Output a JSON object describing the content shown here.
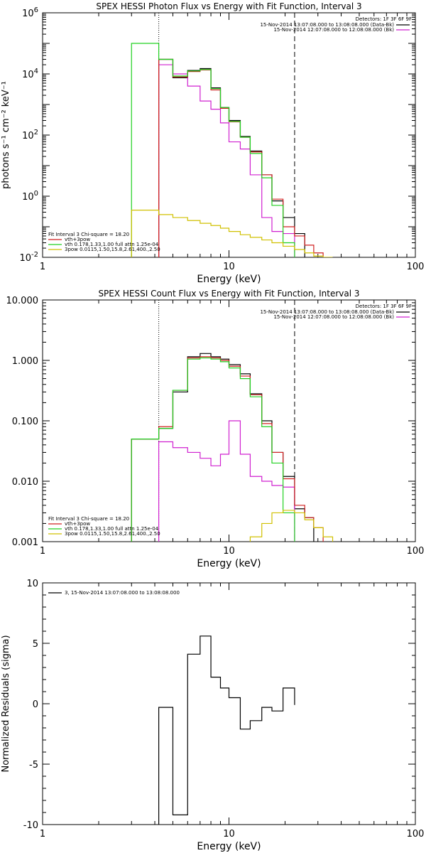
{
  "chart_data": [
    {
      "type": "line",
      "title": "SPEX HESSI Photon Flux vs Energy with Fit Function, Interval 3",
      "xlabel": "Energy (keV)",
      "ylabel": "photons s⁻¹ cm⁻² keV⁻¹",
      "xscale": "log",
      "yscale": "log",
      "xlim": [
        1,
        100
      ],
      "ylim": [
        0.01,
        1000000
      ],
      "x_ticks": [
        {
          "v": 1,
          "label": "1"
        },
        {
          "v": 10,
          "label": "10"
        },
        {
          "v": 100,
          "label": "100"
        }
      ],
      "y_ticks": [
        {
          "v": 0.01,
          "base": "10",
          "exp": "-2"
        },
        {
          "v": 1,
          "base": "10",
          "exp": "0"
        },
        {
          "v": 100,
          "base": "10",
          "exp": "2"
        },
        {
          "v": 10000,
          "base": "10",
          "exp": "4"
        },
        {
          "v": 1000000,
          "base": "10",
          "exp": "6"
        }
      ],
      "legend_right": {
        "title": "Detectors: 1F 3F 6F 9F",
        "entries": [
          {
            "text": "15-Nov-2014 13:07:08.000 to 13:08:08.000 (Data-Bk)",
            "color": "#000000"
          },
          {
            "text": "15-Nov-2014 12:07:08.000 to 12:08:08.000 (Bk)",
            "color": "#d020d0"
          }
        ]
      },
      "legend_left": {
        "title": "Fit Interval 3   Chi-square = 18.20",
        "entries": [
          {
            "text": "vth+3pow",
            "color": "#d02020"
          },
          {
            "text": "vth 0.178,1.33,1.00  full attn 1.25e-04",
            "color": "#20d020"
          },
          {
            "text": "3pow 0.0115,1.50,15.8,2.61,400.,2.50",
            "color": "#d0c000"
          }
        ]
      },
      "vlines": [
        {
          "x": 4.2,
          "style": "dotted"
        },
        {
          "x": 22.5,
          "style": "dashed"
        }
      ],
      "series": [
        {
          "key": "data",
          "color": "#000000",
          "edges": [
            4.2,
            5.0,
            6.0,
            7.0,
            8.0,
            9.0,
            10.0,
            11.5,
            13.0,
            15.0,
            17.0,
            19.5,
            22.5,
            25.5
          ],
          "values": [
            30000,
            7500,
            13000,
            15000,
            3500,
            800,
            300,
            90,
            30,
            5,
            0.7,
            0.2,
            0.06
          ]
        },
        {
          "key": "bk",
          "color": "#d020d0",
          "edges": [
            4.2,
            5.0,
            6.0,
            7.0,
            8.0,
            9.0,
            10.0,
            11.5,
            13.0,
            15.0,
            17.0,
            19.5,
            22.5
          ],
          "values": [
            20000,
            10000,
            4000,
            1300,
            700,
            250,
            60,
            35,
            5,
            0.2,
            0.07,
            0.06
          ]
        },
        {
          "key": "total",
          "color": "#d02020",
          "edges": [
            4.2,
            5.0,
            6.0,
            7.0,
            8.0,
            9.0,
            10.0,
            11.5,
            13.0,
            15.0,
            17.0,
            19.5,
            22.5,
            25.5,
            28.5,
            32.0
          ],
          "values": [
            30000,
            8000,
            12000,
            13500,
            3000,
            750,
            270,
            85,
            28,
            5,
            0.8,
            0.1,
            0.05,
            0.025,
            0.014
          ]
        },
        {
          "key": "thermal",
          "color": "#20d020",
          "edges": [
            3.0,
            4.2,
            5.0,
            6.0,
            7.0,
            8.0,
            9.0,
            10.0,
            11.5,
            13.0,
            15.0,
            17.0,
            19.5,
            22.5
          ],
          "values": [
            100000,
            30000,
            8500,
            12500,
            14000,
            3300,
            800,
            280,
            85,
            25,
            4,
            0.5,
            0.03
          ]
        },
        {
          "key": "powerlaw",
          "color": "#d0c000",
          "edges": [
            3.0,
            4.2,
            5.0,
            6.0,
            7.0,
            8.0,
            9.0,
            10.0,
            11.5,
            13.0,
            15.0,
            17.0,
            19.5,
            22.5,
            25.5,
            28.5,
            32.0,
            36.0
          ],
          "values": [
            0.35,
            0.25,
            0.2,
            0.16,
            0.13,
            0.11,
            0.09,
            0.07,
            0.055,
            0.045,
            0.037,
            0.03,
            0.023,
            0.018,
            0.014,
            0.011,
            0.009
          ]
        }
      ]
    },
    {
      "type": "line",
      "title": "SPEX HESSI Count Flux vs Energy with Fit Function, Interval 3",
      "xlabel": "Energy (keV)",
      "ylabel": "",
      "xscale": "log",
      "yscale": "log",
      "xlim": [
        1,
        100
      ],
      "ylim": [
        0.001,
        10
      ],
      "x_ticks": [
        {
          "v": 1,
          "label": "1"
        },
        {
          "v": 10,
          "label": "10"
        },
        {
          "v": 100,
          "label": "100"
        }
      ],
      "y_ticks": [
        {
          "v": 0.001,
          "label": "0.001"
        },
        {
          "v": 0.01,
          "label": "0.010"
        },
        {
          "v": 0.1,
          "label": "0.100"
        },
        {
          "v": 1,
          "label": "1.000"
        },
        {
          "v": 10,
          "label": "10.000"
        }
      ],
      "legend_right": {
        "title": "Detectors: 1F 3F 6F 9F",
        "entries": [
          {
            "text": "15-Nov-2014 13:07:08.000 to 13:08:08.000 (Data-Bk)",
            "color": "#000000"
          },
          {
            "text": "15-Nov-2014 12:07:08.000 to 12:08:08.000 (Bk)",
            "color": "#d020d0"
          }
        ]
      },
      "legend_left": {
        "title": "Fit Interval 3   Chi-square = 18.20",
        "entries": [
          {
            "text": "vth+3pow",
            "color": "#d02020"
          },
          {
            "text": "vth 0.178,1.33,1.00  full attn 1.25e-04",
            "color": "#20d020"
          },
          {
            "text": "3pow 0.0115,1.50,15.8,2.61,400.,2.50",
            "color": "#d0c000"
          }
        ]
      },
      "vlines": [
        {
          "x": 4.2,
          "style": "dotted"
        },
        {
          "x": 22.5,
          "style": "dashed"
        }
      ],
      "series": [
        {
          "key": "data",
          "color": "#000000",
          "edges": [
            3.0,
            4.2,
            5.0,
            6.0,
            7.0,
            8.0,
            9.0,
            10.0,
            11.5,
            13.0,
            15.0,
            17.0,
            19.5,
            22.5,
            25.5,
            28.5
          ],
          "values": [
            0.05,
            0.075,
            0.3,
            1.15,
            1.3,
            1.15,
            1.05,
            0.85,
            0.6,
            0.28,
            0.1,
            0.03,
            0.012,
            0.0035,
            0.0025
          ]
        },
        {
          "key": "bk",
          "color": "#d020d0",
          "edges": [
            4.2,
            5.0,
            6.0,
            7.0,
            8.0,
            9.0,
            10.0,
            11.5,
            13.0,
            15.0,
            17.0,
            19.5,
            22.5
          ],
          "values": [
            0.045,
            0.036,
            0.03,
            0.024,
            0.018,
            0.028,
            0.1,
            0.028,
            0.012,
            0.01,
            0.0085,
            0.008
          ]
        },
        {
          "key": "total",
          "color": "#d02020",
          "edges": [
            3.0,
            4.2,
            5.0,
            6.0,
            7.0,
            8.0,
            9.0,
            10.0,
            11.5,
            13.0,
            15.0,
            17.0,
            19.5,
            22.5,
            25.5,
            28.5,
            32.0
          ],
          "values": [
            0.05,
            0.08,
            0.32,
            1.1,
            1.15,
            1.1,
            1.0,
            0.8,
            0.55,
            0.27,
            0.09,
            0.03,
            0.011,
            0.004,
            0.0025,
            0.0017
          ]
        },
        {
          "key": "thermal",
          "color": "#20d020",
          "edges": [
            3.0,
            4.2,
            5.0,
            6.0,
            7.0,
            8.0,
            9.0,
            10.0,
            11.5,
            13.0,
            15.0,
            17.0,
            19.5,
            22.5
          ],
          "values": [
            0.05,
            0.075,
            0.32,
            1.05,
            1.1,
            1.05,
            0.95,
            0.75,
            0.5,
            0.25,
            0.08,
            0.02,
            0.003
          ]
        },
        {
          "key": "powerlaw",
          "color": "#d0c000",
          "edges": [
            13.0,
            15.0,
            17.0,
            19.5,
            22.5,
            25.5,
            28.5,
            32.0,
            36.0
          ],
          "values": [
            0.0012,
            0.002,
            0.003,
            0.0033,
            0.003,
            0.0023,
            0.0017,
            0.0012
          ]
        }
      ]
    },
    {
      "type": "line",
      "title": "",
      "xlabel": "Energy (keV)",
      "ylabel": "Normalized Residuals (sigma)",
      "xscale": "log",
      "yscale": "linear",
      "xlim": [
        1,
        100
      ],
      "ylim": [
        -10,
        10
      ],
      "x_ticks": [
        {
          "v": 1,
          "label": "1"
        },
        {
          "v": 10,
          "label": "10"
        },
        {
          "v": 100,
          "label": "100"
        }
      ],
      "y_ticks": [
        {
          "v": -10,
          "label": "-10"
        },
        {
          "v": -5,
          "label": "-5"
        },
        {
          "v": 0,
          "label": "0"
        },
        {
          "v": 5,
          "label": "5"
        },
        {
          "v": 10,
          "label": "10"
        }
      ],
      "legend_left": {
        "title": "",
        "entries": [
          {
            "text": "3, 15-Nov-2014 13:07:08.000 to 13:08:08.000",
            "color": "#000000"
          }
        ]
      },
      "vlines": [],
      "series": [
        {
          "key": "residuals",
          "color": "#000000",
          "edges": [
            4.2,
            5.0,
            6.0,
            7.0,
            8.0,
            9.0,
            10.0,
            11.5,
            13.0,
            15.0,
            17.0,
            19.5,
            22.5
          ],
          "values": [
            -0.3,
            -9.2,
            4.1,
            5.6,
            2.2,
            1.3,
            0.5,
            -2.1,
            -1.4,
            -0.3,
            -0.6,
            1.3,
            -0.1
          ],
          "drop_ends": true
        }
      ]
    }
  ]
}
